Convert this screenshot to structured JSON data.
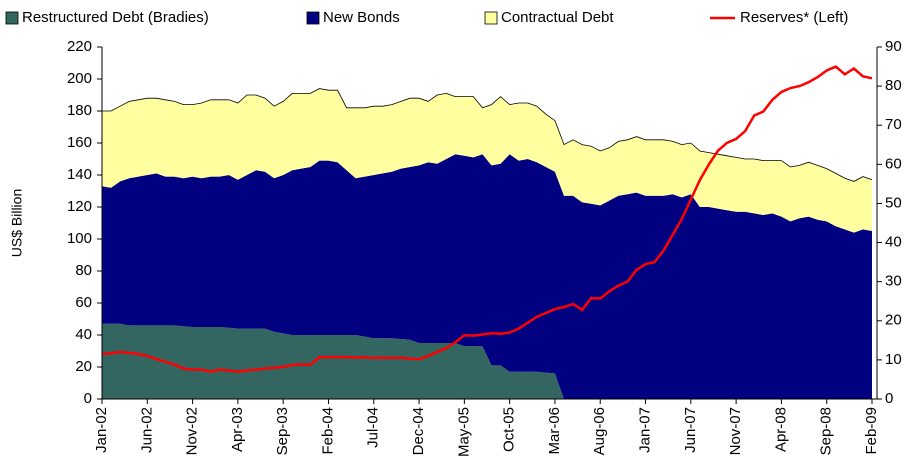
{
  "chart_data": {
    "type": "area",
    "stacked": true,
    "y_label": "US$ Billion",
    "categories": [
      "Jan-02",
      null,
      null,
      null,
      null,
      "Jun-02",
      null,
      null,
      null,
      null,
      "Nov-02",
      null,
      null,
      null,
      null,
      "Apr-03",
      null,
      null,
      null,
      null,
      "Sep-03",
      null,
      null,
      null,
      null,
      "Feb-04",
      null,
      null,
      null,
      null,
      "Jul-04",
      null,
      null,
      null,
      null,
      "Dec-04",
      null,
      null,
      null,
      null,
      "May-05",
      null,
      null,
      null,
      null,
      "Oct-05",
      null,
      null,
      null,
      null,
      "Mar-06",
      null,
      null,
      null,
      null,
      "Aug-06",
      null,
      null,
      null,
      null,
      "Jan-07",
      null,
      null,
      null,
      null,
      "Jun-07",
      null,
      null,
      null,
      null,
      "Nov-07",
      null,
      null,
      null,
      null,
      "Apr-08",
      null,
      null,
      null,
      null,
      "Sep-08",
      null,
      null,
      null,
      null,
      "Feb-09"
    ],
    "series": [
      {
        "name": "Restructured Debt (Bradies)",
        "color": "#336660",
        "values": [
          47,
          47,
          47,
          46,
          46,
          46,
          46,
          46,
          46,
          45.5,
          45,
          45,
          45,
          45,
          44.5,
          44,
          44,
          44,
          44,
          42,
          41,
          40,
          40,
          40,
          40,
          40,
          40,
          40,
          40,
          39,
          38,
          38,
          38,
          37.5,
          37,
          35,
          35,
          35,
          35,
          35,
          33,
          33,
          33,
          21,
          21,
          17,
          17,
          17,
          17,
          16.5,
          16,
          0,
          0,
          0,
          0,
          0,
          0,
          0,
          0,
          0,
          0,
          0,
          0,
          0,
          0,
          0,
          0,
          0,
          0,
          0,
          0,
          0,
          0,
          0,
          0,
          0,
          0,
          0,
          0,
          0,
          0,
          0,
          0,
          0,
          0,
          0
        ]
      },
      {
        "name": "New Bonds",
        "color": "#000080",
        "values": [
          86,
          85,
          89,
          92,
          93,
          94,
          95,
          93,
          93,
          92.5,
          94,
          93,
          94,
          94,
          95.5,
          93,
          96,
          99,
          98,
          96,
          99,
          103,
          104,
          105,
          109,
          109,
          108,
          103,
          98,
          100,
          102,
          103,
          104,
          106.5,
          108,
          111,
          113,
          112,
          115,
          118,
          119,
          118,
          120,
          125,
          126,
          136,
          132,
          133,
          131,
          128.5,
          126,
          127,
          127,
          123,
          122,
          121,
          124,
          127,
          128,
          129,
          127,
          127,
          127,
          128,
          126,
          128,
          120,
          120,
          119,
          118,
          117,
          117,
          116,
          115,
          116,
          114,
          111,
          113,
          114,
          112,
          111,
          108,
          106,
          104,
          106,
          105
        ]
      },
      {
        "name": "Contractual Debt",
        "color": "#ffffa0",
        "values": [
          47,
          48,
          47,
          48,
          48,
          48,
          47,
          48,
          47,
          46,
          45,
          47,
          48,
          48,
          47,
          48,
          50,
          47,
          46,
          45,
          46,
          48,
          47,
          46,
          45,
          44,
          45,
          39,
          44,
          43,
          43,
          42,
          42,
          42,
          43,
          42,
          38,
          43,
          41,
          36,
          37,
          38,
          29,
          38,
          42,
          31,
          36,
          35,
          35,
          33,
          32,
          32,
          35,
          36,
          36,
          34,
          33,
          34,
          34,
          35,
          35,
          35,
          35,
          33,
          33,
          32,
          35,
          34,
          34,
          34,
          34,
          33,
          34,
          34,
          33,
          35,
          34,
          33,
          34,
          34,
          33,
          33,
          32,
          32,
          33,
          32
        ]
      },
      {
        "name": "Reserves* (Left)",
        "color": "#ff0000",
        "type": "line",
        "axis": "y2",
        "values": [
          11.5,
          11.7,
          12,
          11.8,
          11.5,
          11,
          10.2,
          9.5,
          8.8,
          7.8,
          7.5,
          7.5,
          7,
          7.5,
          7.3,
          7,
          7.3,
          7.5,
          7.8,
          8,
          8.2,
          8.7,
          8.8,
          8.8,
          10.7,
          10.7,
          10.7,
          10.7,
          10.6,
          10.7,
          10.5,
          10.6,
          10.5,
          10.6,
          10.3,
          10.2,
          11,
          12,
          13,
          14.5,
          16.3,
          16.2,
          16.5,
          16.8,
          16.7,
          17,
          18,
          19.5,
          21,
          22,
          23,
          23.5,
          24.3,
          22.8,
          25.8,
          25.7,
          27.5,
          29,
          30,
          33,
          34.5,
          35,
          38,
          42,
          46,
          51,
          56,
          60,
          63.5,
          65.5,
          66.5,
          68.5,
          72.5,
          73.5,
          76.5,
          78.5,
          79.5,
          80,
          81,
          82.3,
          84,
          85,
          83,
          84.5,
          82.5,
          82
        ]
      }
    ],
    "ylim": [
      0,
      220
    ],
    "yticks": [
      0,
      20,
      40,
      60,
      80,
      100,
      120,
      140,
      160,
      180,
      200,
      220
    ],
    "y2lim": [
      0,
      90
    ],
    "y2ticks": [
      0,
      10,
      20,
      30,
      40,
      50,
      60,
      70,
      80,
      90
    ],
    "legend": "top"
  }
}
